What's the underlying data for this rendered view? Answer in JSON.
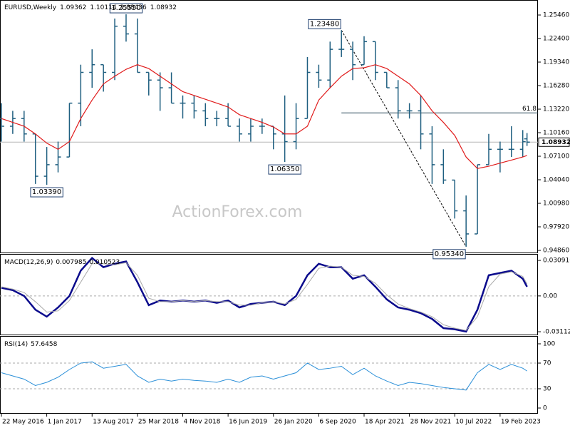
{
  "chart_data": [
    {
      "type": "ohlc",
      "title": "EURUSD,Weekly",
      "color": "#1f5f80",
      "x": [
        "22 May 2016",
        "17 Jul 2016",
        "11 Sep 2016",
        "6 Nov 2016",
        "1 Jan 2017",
        "26 Feb 2017",
        "23 Apr 2017",
        "18 Jun 2017",
        "13 Aug 2017",
        "8 Oct 2017",
        "3 Dec 2017",
        "28 Jan 2018",
        "25 Mar 2018",
        "20 May 2018",
        "15 Jul 2018",
        "9 Sep 2018",
        "4 Nov 2018",
        "30 Dec 2018",
        "24 Feb 2019",
        "21 Apr 2019",
        "16 Jun 2019",
        "11 Aug 2019",
        "6 Oct 2019",
        "1 Dec 2019",
        "26 Jan 2020",
        "22 Mar 2020",
        "17 May 2020",
        "12 Jul 2020",
        "6 Sep 2020",
        "1 Nov 2020",
        "27 Dec 2020",
        "21 Feb 2021",
        "18 Apr 2021",
        "13 Jun 2021",
        "8 Aug 2021",
        "3 Oct 2021",
        "28 Nov 2021",
        "23 Jan 2022",
        "20 Mar 2022",
        "15 May 2022",
        "10 Jul 2022",
        "4 Sep 2022",
        "30 Oct 2022",
        "25 Dec 2022",
        "19 Feb 2023",
        "16 Apr 2023",
        "11 Jun 2023",
        "2 Jul 2023"
      ],
      "xlim": [
        "15 May 2016",
        "25 Aug 2023"
      ],
      "open": [
        1.12,
        1.11,
        1.12,
        1.1,
        1.045,
        1.06,
        1.07,
        1.14,
        1.18,
        1.19,
        1.18,
        1.24,
        1.23,
        1.18,
        1.17,
        1.16,
        1.14,
        1.14,
        1.13,
        1.12,
        1.12,
        1.11,
        1.1,
        1.11,
        1.11,
        1.1,
        1.09,
        1.12,
        1.18,
        1.17,
        1.21,
        1.21,
        1.19,
        1.22,
        1.18,
        1.16,
        1.13,
        1.13,
        1.1,
        1.06,
        1.04,
        1.0,
        0.97,
        1.06,
        1.08,
        1.08,
        1.08,
        1.09362
      ],
      "high": [
        1.14,
        1.13,
        1.13,
        1.1,
        1.083,
        1.09,
        1.14,
        1.19,
        1.21,
        1.19,
        1.25,
        1.2555,
        1.25,
        1.18,
        1.18,
        1.18,
        1.15,
        1.15,
        1.14,
        1.13,
        1.14,
        1.12,
        1.12,
        1.12,
        1.11,
        1.15,
        1.14,
        1.2,
        1.19,
        1.22,
        1.2348,
        1.22,
        1.227,
        1.22,
        1.18,
        1.17,
        1.14,
        1.15,
        1.11,
        1.08,
        1.04,
        1.02,
        1.06,
        1.1,
        1.09,
        1.11,
        1.105,
        1.10114
      ],
      "low": [
        1.09,
        1.1,
        1.09,
        1.035,
        1.0339,
        1.05,
        1.07,
        1.11,
        1.16,
        1.155,
        1.17,
        1.22,
        1.18,
        1.15,
        1.13,
        1.14,
        1.12,
        1.12,
        1.11,
        1.11,
        1.11,
        1.09,
        1.09,
        1.1,
        1.08,
        1.0635,
        1.08,
        1.12,
        1.16,
        1.16,
        1.2,
        1.17,
        1.19,
        1.17,
        1.16,
        1.12,
        1.12,
        1.08,
        1.035,
        1.035,
        0.99,
        0.9534,
        0.97,
        1.06,
        1.05,
        1.07,
        1.07,
        1.08436
      ],
      "close": [
        1.11,
        1.12,
        1.1,
        1.045,
        1.06,
        1.07,
        1.14,
        1.18,
        1.19,
        1.18,
        1.24,
        1.23,
        1.18,
        1.17,
        1.16,
        1.14,
        1.14,
        1.13,
        1.12,
        1.12,
        1.11,
        1.1,
        1.11,
        1.11,
        1.1,
        1.09,
        1.12,
        1.18,
        1.17,
        1.21,
        1.21,
        1.19,
        1.22,
        1.18,
        1.16,
        1.13,
        1.13,
        1.1,
        1.06,
        1.04,
        1.0,
        0.97,
        1.06,
        1.08,
        1.08,
        1.08,
        1.09,
        1.08932
      ],
      "ma": {
        "color": "#e01b1b",
        "values": [
          1.12,
          1.115,
          1.11,
          1.1,
          1.088,
          1.08,
          1.09,
          1.12,
          1.144,
          1.165,
          1.175,
          1.184,
          1.19,
          1.185,
          1.175,
          1.165,
          1.155,
          1.15,
          1.145,
          1.14,
          1.135,
          1.125,
          1.12,
          1.115,
          1.109,
          1.1,
          1.1,
          1.11,
          1.144,
          1.16,
          1.175,
          1.185,
          1.186,
          1.19,
          1.185,
          1.175,
          1.165,
          1.15,
          1.13,
          1.115,
          1.098,
          1.07,
          1.055,
          1.058,
          1.062,
          1.066,
          1.07,
          1.072
        ]
      },
      "ylim": [
        0.9449,
        1.2741
      ],
      "yticks": [
        {
          "value": 1.2546,
          "label": "1.25460"
        },
        {
          "value": 1.224,
          "label": "1.22400"
        },
        {
          "value": 1.1934,
          "label": "1.19340"
        },
        {
          "value": 1.1628,
          "label": "1.16280"
        },
        {
          "value": 1.1322,
          "label": "1.13220"
        },
        {
          "value": 1.1016,
          "label": "1.10160"
        },
        {
          "value": 1.071,
          "label": "1.07100"
        },
        {
          "value": 1.0404,
          "label": "1.04040"
        },
        {
          "value": 1.0098,
          "label": "1.00980"
        },
        {
          "value": 0.9792,
          "label": "0.97920"
        },
        {
          "value": 0.9486,
          "label": "0.94860"
        }
      ],
      "annotations": [
        {
          "x": "28 Jan 2018",
          "value": 1.2555,
          "label": "1.25550"
        },
        {
          "x": "27 Dec 2020",
          "value": 1.2348,
          "label": "1.23480"
        },
        {
          "x": "22 Mar 2020",
          "value": 1.0635,
          "label": "1.06350"
        },
        {
          "x": "1 Jan 2017",
          "value": 1.0339,
          "label": "1.03390"
        },
        {
          "x": "4 Sep 2022",
          "value": 0.9534,
          "label": "0.95340"
        }
      ],
      "fib_label": "61.8",
      "fib_price": 1.1273,
      "watermark": "ActionForex.com"
    },
    {
      "type": "line",
      "title": "MACD(12,26,9)",
      "x": [
        "22 May 2016",
        "17 Jul 2016",
        "11 Sep 2016",
        "6 Nov 2016",
        "1 Jan 2017",
        "26 Feb 2017",
        "23 Apr 2017",
        "18 Jun 2017",
        "13 Aug 2017",
        "8 Oct 2017",
        "3 Dec 2017",
        "28 Jan 2018",
        "25 Mar 2018",
        "20 May 2018",
        "15 Jul 2018",
        "9 Sep 2018",
        "4 Nov 2018",
        "30 Dec 2018",
        "24 Feb 2019",
        "21 Apr 2019",
        "16 Jun 2019",
        "11 Aug 2019",
        "6 Oct 2019",
        "1 Dec 2019",
        "26 Jan 2020",
        "22 Mar 2020",
        "17 May 2020",
        "12 Jul 2020",
        "6 Sep 2020",
        "1 Nov 2020",
        "27 Dec 2020",
        "21 Feb 2021",
        "18 Apr 2021",
        "13 Jun 2021",
        "8 Aug 2021",
        "3 Oct 2021",
        "28 Nov 2021",
        "23 Jan 2022",
        "20 Mar 2022",
        "15 May 2022",
        "10 Jul 2022",
        "4 Sep 2022",
        "30 Oct 2022",
        "25 Dec 2022",
        "19 Feb 2023",
        "16 Apr 2023",
        "11 Jun 2023",
        "2 Jul 2023"
      ],
      "xlim": [
        "15 May 2016",
        "25 Aug 2023"
      ],
      "series": [
        {
          "color": "#0a0a8c",
          "values": [
            0.007,
            0.005,
            0.0,
            -0.012,
            -0.018,
            -0.01,
            0.0,
            0.022,
            0.033,
            0.025,
            0.028,
            0.03,
            0.012,
            -0.008,
            -0.004,
            -0.005,
            -0.004,
            -0.005,
            -0.004,
            -0.006,
            -0.004,
            -0.01,
            -0.007,
            -0.006,
            -0.005,
            -0.008,
            0.0,
            0.018,
            0.028,
            0.025,
            0.025,
            0.015,
            0.018,
            0.008,
            -0.003,
            -0.01,
            -0.012,
            -0.015,
            -0.02,
            -0.028,
            -0.029,
            -0.031,
            -0.012,
            0.018,
            0.02,
            0.022,
            0.015,
            0.007985
          ]
        },
        {
          "color": "#a8a8a8",
          "values": [
            0.008,
            0.006,
            0.003,
            -0.005,
            -0.014,
            -0.013,
            -0.004,
            0.012,
            0.028,
            0.028,
            0.027,
            0.029,
            0.018,
            -0.002,
            -0.005,
            -0.005,
            -0.004,
            -0.005,
            -0.004,
            -0.005,
            -0.005,
            -0.008,
            -0.008,
            -0.006,
            -0.005,
            -0.007,
            -0.003,
            0.01,
            0.024,
            0.026,
            0.025,
            0.018,
            0.017,
            0.011,
            0.001,
            -0.007,
            -0.011,
            -0.014,
            -0.018,
            -0.025,
            -0.028,
            -0.03,
            -0.018,
            0.008,
            0.019,
            0.021,
            0.017,
            0.010523
          ]
        }
      ],
      "ylim": [
        -0.0342,
        0.0359
      ],
      "yticks": [
        0.030916,
        {
          "value": 0,
          "label": "0.00"
        },
        -0.031124
      ],
      "levels": [
        0
      ]
    },
    {
      "type": "line",
      "title": "RSI(14)",
      "x": [
        "22 May 2016",
        "17 Jul 2016",
        "11 Sep 2016",
        "6 Nov 2016",
        "1 Jan 2017",
        "26 Feb 2017",
        "23 Apr 2017",
        "18 Jun 2017",
        "13 Aug 2017",
        "8 Oct 2017",
        "3 Dec 2017",
        "28 Jan 2018",
        "25 Mar 2018",
        "20 May 2018",
        "15 Jul 2018",
        "9 Sep 2018",
        "4 Nov 2018",
        "30 Dec 2018",
        "24 Feb 2019",
        "21 Apr 2019",
        "16 Jun 2019",
        "11 Aug 2019",
        "6 Oct 2019",
        "1 Dec 2019",
        "26 Jan 2020",
        "22 Mar 2020",
        "17 May 2020",
        "12 Jul 2020",
        "6 Sep 2020",
        "1 Nov 2020",
        "27 Dec 2020",
        "21 Feb 2021",
        "18 Apr 2021",
        "13 Jun 2021",
        "8 Aug 2021",
        "3 Oct 2021",
        "28 Nov 2021",
        "23 Jan 2022",
        "20 Mar 2022",
        "15 May 2022",
        "10 Jul 2022",
        "4 Sep 2022",
        "30 Oct 2022",
        "25 Dec 2022",
        "19 Feb 2023",
        "16 Apr 2023",
        "11 Jun 2023",
        "2 Jul 2023"
      ],
      "xlim": [
        "15 May 2016",
        "25 Aug 2023"
      ],
      "series": [
        {
          "color": "#2a8fd8",
          "values": [
            55,
            50,
            45,
            35,
            40,
            48,
            60,
            70,
            72,
            62,
            65,
            68,
            50,
            40,
            45,
            42,
            45,
            43,
            42,
            40,
            45,
            40,
            48,
            50,
            45,
            50,
            55,
            70,
            60,
            62,
            65,
            52,
            62,
            50,
            42,
            35,
            40,
            38,
            35,
            32,
            30,
            28,
            55,
            68,
            60,
            68,
            62,
            57.6458
          ]
        }
      ],
      "ylim": [
        -8.9,
        111.1
      ],
      "yticks": [
        100,
        70,
        30,
        0
      ],
      "levels": [
        70,
        30
      ],
      "xticks": [
        "22 May 2016",
        "1 Jan 2017",
        "13 Aug 2017",
        "25 Mar 2018",
        "4 Nov 2018",
        "16 Jun 2019",
        "26 Jan 2020",
        "6 Sep 2020",
        "18 Apr 2021",
        "28 Nov 2021",
        "10 Jul 2022",
        "19 Feb 2023"
      ]
    }
  ]
}
